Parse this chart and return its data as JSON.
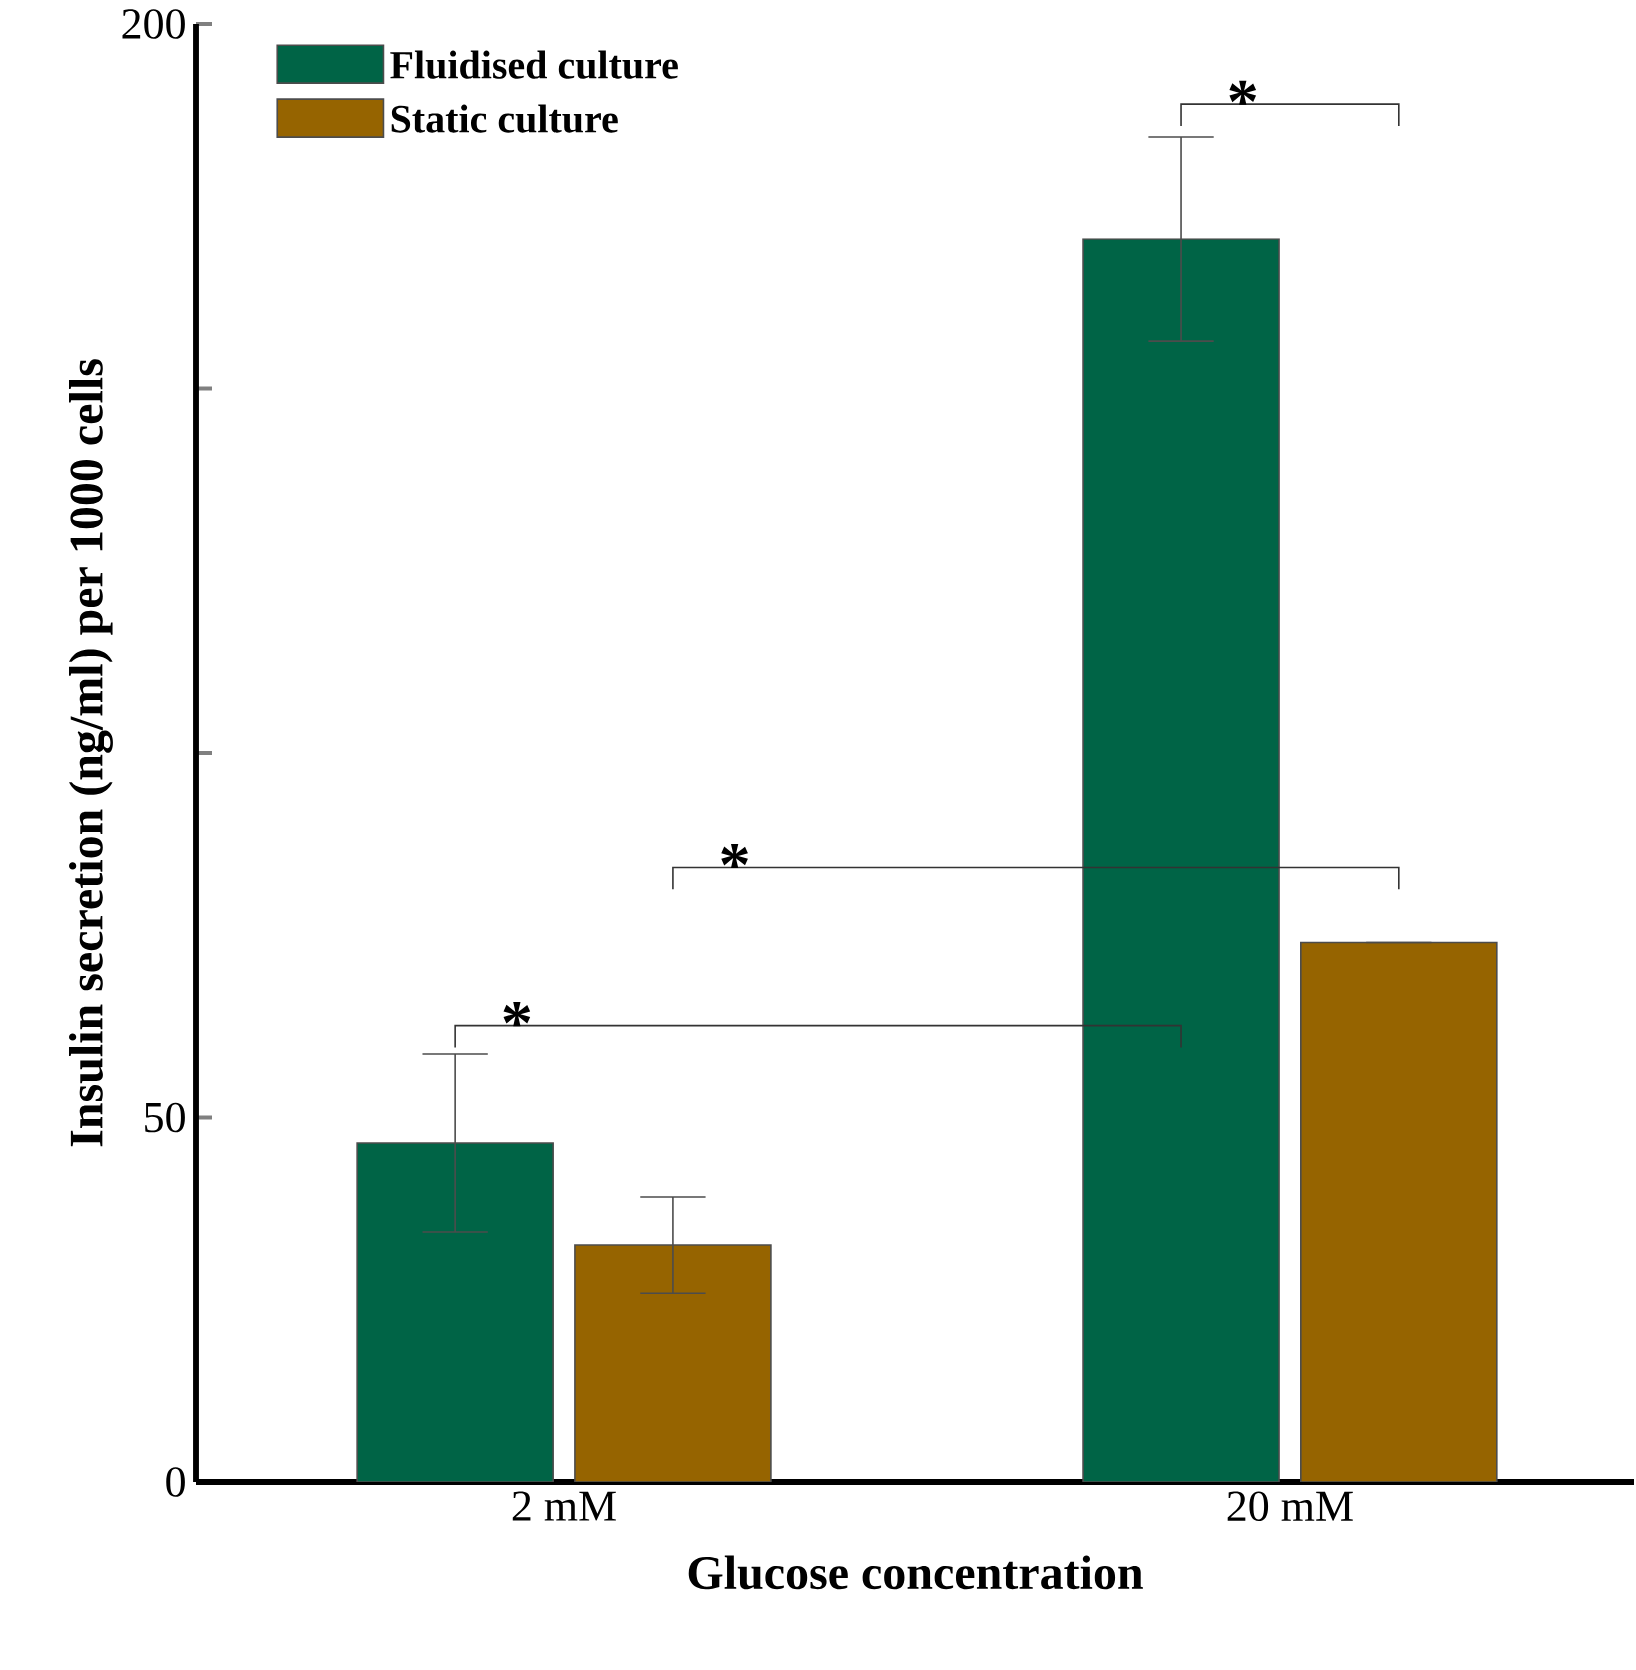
{
  "chart_data": {
    "type": "bar",
    "xlabel": "Glucose concentration",
    "ylabel": "Insulin secretion (ng/ml) per 1000 cells",
    "categories": [
      "2 mM",
      "20 mM"
    ],
    "series": [
      {
        "name": "Fluidised culture",
        "color": "#006446",
        "values": [
          46.5,
          170.5
        ],
        "errors": [
          12.2,
          14
        ]
      },
      {
        "name": "Static culture",
        "color": "#966400",
        "values": [
          32.5,
          74
        ],
        "errors": [
          6.6,
          0
        ]
      }
    ],
    "ylim": [
      0,
      200
    ],
    "yticks": [
      0,
      50,
      {
        "value": 100,
        "label": null
      },
      {
        "value": 150,
        "label": null
      },
      200
    ],
    "legend": "top left",
    "grid": false,
    "annotations": [
      "*",
      "*",
      "*"
    ]
  }
}
